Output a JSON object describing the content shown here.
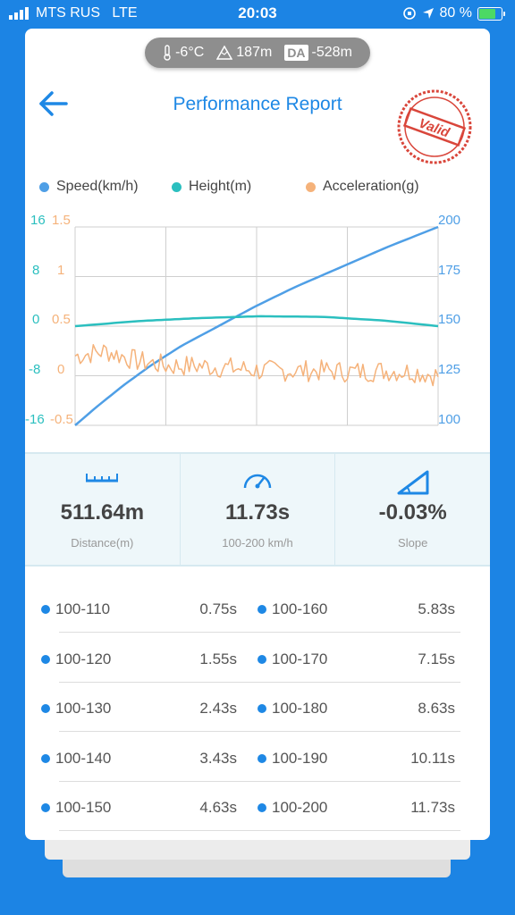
{
  "status_bar": {
    "carrier": "MTS RUS",
    "network": "LTE",
    "time": "20:03",
    "battery": "80 %",
    "battery_level": 0.8
  },
  "env": {
    "temperature": "-6°C",
    "altitude": "187m",
    "da_label": "DA",
    "density_altitude": "-528m"
  },
  "header": {
    "title": "Performance Report",
    "stamp_text": "Valid"
  },
  "legend": [
    {
      "label": "Speed(km/h)",
      "color": "#4f9fe6"
    },
    {
      "label": "Height(m)",
      "color": "#2bbfbf"
    },
    {
      "label": "Acceleration(g)",
      "color": "#f5b27a"
    }
  ],
  "chart_data": {
    "type": "line",
    "axes": {
      "height_ticks": [
        "16",
        "8",
        "0",
        "-8",
        "-16"
      ],
      "acceleration_ticks": [
        "1.5",
        "1",
        "0.5",
        "0",
        "-0.5"
      ],
      "speed_ticks": [
        "200",
        "175",
        "150",
        "125",
        "100"
      ],
      "height_range": [
        -16,
        16
      ],
      "acceleration_range": [
        -0.5,
        1.5
      ],
      "speed_range": [
        100,
        200
      ],
      "time_range": [
        0,
        11.73
      ]
    },
    "grid": true,
    "series": [
      {
        "name": "Speed(km/h)",
        "axis": "right",
        "color": "#4f9fe6",
        "x": [
          0,
          0.75,
          1.55,
          2.43,
          3.43,
          4.63,
          5.83,
          7.15,
          8.63,
          10.11,
          11.73
        ],
        "y": [
          100,
          110,
          120,
          130,
          140,
          150,
          160,
          170,
          180,
          190,
          200
        ]
      },
      {
        "name": "Height(m)",
        "axis": "left",
        "color": "#2bbfbf",
        "x": [
          0,
          2,
          4,
          6,
          8,
          10,
          11.73
        ],
        "y": [
          0,
          0.8,
          1.3,
          1.6,
          1.5,
          0.9,
          0
        ]
      },
      {
        "name": "Acceleration(g)",
        "axis": "left2",
        "color": "#f5b27a",
        "x": [
          0,
          1,
          2,
          3,
          4,
          5,
          6,
          7,
          8,
          9,
          10,
          11,
          11.73
        ],
        "y": [
          0.2,
          0.25,
          0.15,
          0.1,
          0.1,
          0.08,
          0.05,
          0.05,
          0.05,
          0.04,
          0.05,
          0.04,
          0.0
        ]
      }
    ]
  },
  "stats": [
    {
      "value": "511.64m",
      "label": "Distance(m)",
      "icon": "ruler-icon"
    },
    {
      "value": "11.73s",
      "label": "100-200 km/h",
      "icon": "speedometer-icon"
    },
    {
      "value": "-0.03%",
      "label": "Slope",
      "icon": "slope-icon"
    }
  ],
  "splits": [
    {
      "range": "100-110",
      "time": "0.75s"
    },
    {
      "range": "100-120",
      "time": "1.55s"
    },
    {
      "range": "100-130",
      "time": "2.43s"
    },
    {
      "range": "100-140",
      "time": "3.43s"
    },
    {
      "range": "100-150",
      "time": "4.63s"
    },
    {
      "range": "100-160",
      "time": "5.83s"
    },
    {
      "range": "100-170",
      "time": "7.15s"
    },
    {
      "range": "100-180",
      "time": "8.63s"
    },
    {
      "range": "100-190",
      "time": "10.11s"
    },
    {
      "range": "100-200",
      "time": "11.73s"
    }
  ]
}
